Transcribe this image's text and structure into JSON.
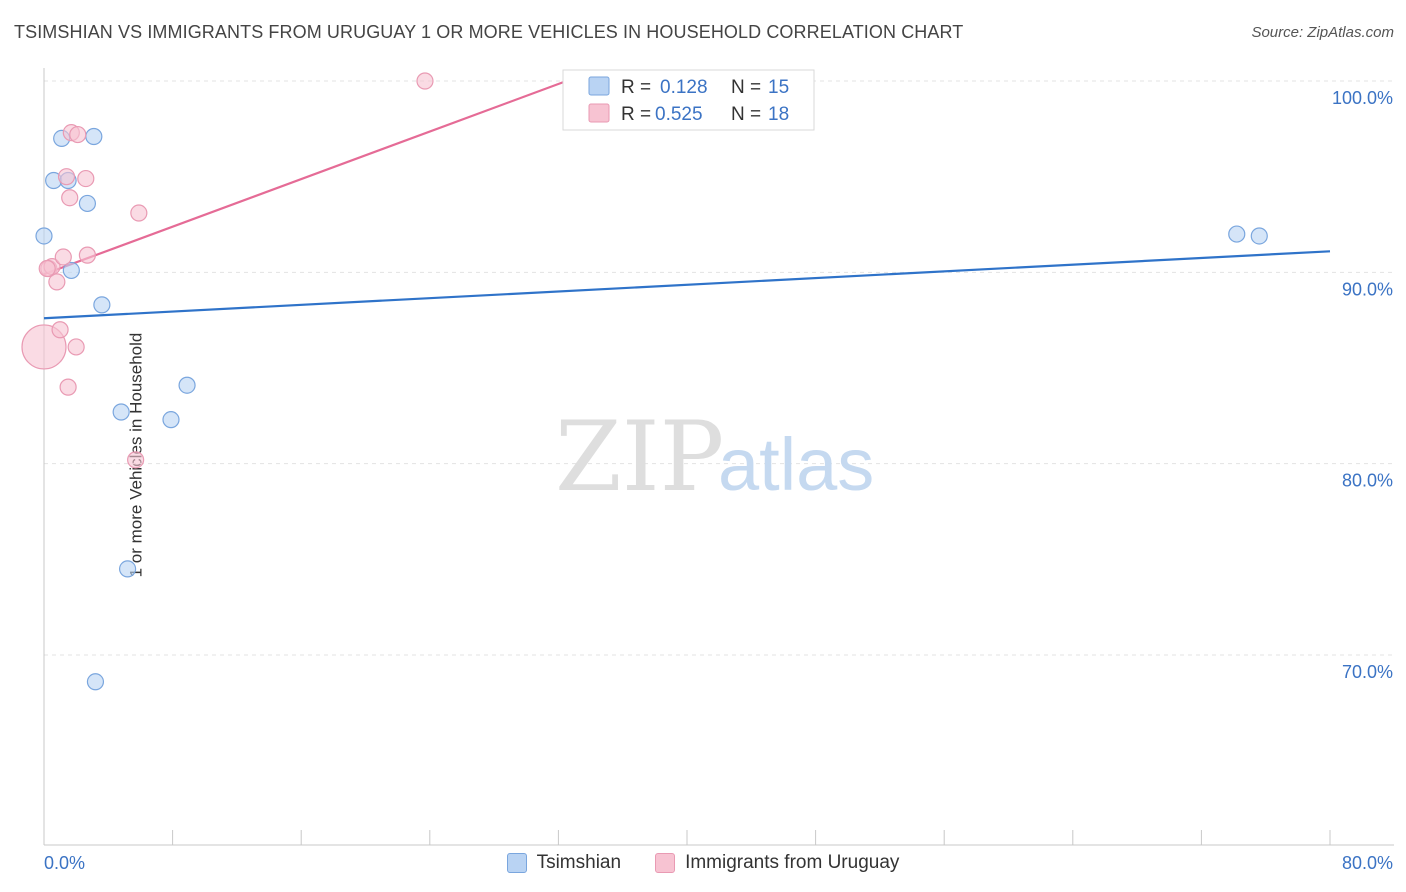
{
  "title": "TSIMSHIAN VS IMMIGRANTS FROM URUGUAY 1 OR MORE VEHICLES IN HOUSEHOLD CORRELATION CHART",
  "source": "Source: ZipAtlas.com",
  "watermark": {
    "zip": "ZIP",
    "atlas": "atlas"
  },
  "colors": {
    "blue_fill": "#b9d3f3",
    "blue_stroke": "#7aa6de",
    "blue_line": "#2f73c9",
    "pink_fill": "#f7c3d2",
    "pink_stroke": "#e99ab3",
    "pink_line": "#e56b96",
    "value_text": "#3b73c4"
  },
  "legend_box": {
    "rows": [
      {
        "r_label": "R =",
        "r_value": "0.128",
        "n_label": "N =",
        "n_value": "15"
      },
      {
        "r_label": "R =",
        "r_value": "0.525",
        "n_label": "N =",
        "n_value": "18"
      }
    ]
  },
  "chart_data": {
    "type": "scatter",
    "title": "TSIMSHIAN VS IMMIGRANTS FROM URUGUAY 1 OR MORE VEHICLES IN HOUSEHOLD CORRELATION CHART",
    "xlabel": "",
    "ylabel": "1 or more Vehicles in Household",
    "xlim": [
      0,
      80
    ],
    "ylim": [
      60.5,
      101
    ],
    "x_tick_labels": [
      "0.0%",
      "80.0%"
    ],
    "y_ticks": [
      70,
      80,
      90,
      100
    ],
    "y_tick_labels": [
      "70.0%",
      "80.0%",
      "90.0%",
      "100.0%"
    ],
    "grid": true,
    "legend_position": "top-center",
    "series": [
      {
        "name": "Tsimshian",
        "color": "#b9d3f3",
        "r": 0.128,
        "n": 15,
        "points": [
          [
            0.0,
            91.9
          ],
          [
            0.6,
            94.8
          ],
          [
            1.1,
            97.0
          ],
          [
            1.5,
            94.8
          ],
          [
            1.7,
            90.1
          ],
          [
            2.7,
            93.6
          ],
          [
            3.1,
            97.1
          ],
          [
            3.6,
            88.3
          ],
          [
            4.8,
            82.7
          ],
          [
            5.2,
            74.5
          ],
          [
            7.9,
            82.3
          ],
          [
            8.9,
            84.1
          ],
          [
            3.2,
            68.6
          ],
          [
            74.2,
            92.0
          ],
          [
            75.6,
            91.9
          ]
        ],
        "trend": {
          "x": [
            0,
            80
          ],
          "y": [
            87.6,
            91.1
          ]
        }
      },
      {
        "name": "Immigrants from Uruguay",
        "color": "#f7c3d2",
        "r": 0.525,
        "n": 18,
        "points": [
          [
            0.0,
            86.1
          ],
          [
            0.3,
            90.2
          ],
          [
            0.5,
            90.3
          ],
          [
            0.8,
            89.5
          ],
          [
            1.0,
            87.0
          ],
          [
            1.2,
            90.8
          ],
          [
            1.4,
            95.0
          ],
          [
            1.5,
            84.0
          ],
          [
            1.6,
            93.9
          ],
          [
            1.7,
            97.3
          ],
          [
            2.0,
            86.1
          ],
          [
            2.1,
            97.2
          ],
          [
            2.6,
            94.9
          ],
          [
            2.7,
            90.9
          ],
          [
            5.7,
            80.2
          ],
          [
            5.9,
            93.1
          ],
          [
            23.7,
            100.0
          ],
          [
            0.2,
            90.2
          ]
        ],
        "trend": {
          "x": [
            0,
            32.5
          ],
          "y": [
            89.9,
            100.0
          ]
        }
      }
    ]
  }
}
